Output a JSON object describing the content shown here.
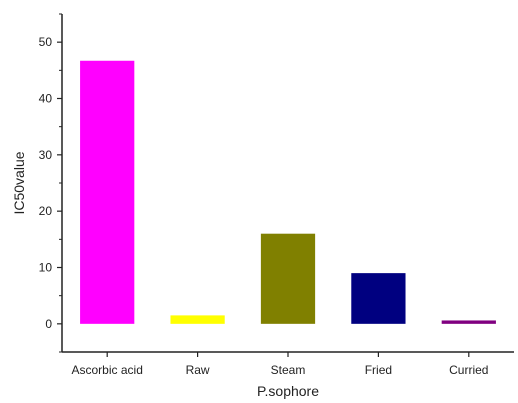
{
  "chart_data": {
    "type": "bar",
    "categories": [
      "Ascorbic acid",
      "Raw",
      "Steam",
      "Fried",
      "Curried"
    ],
    "values": [
      46.7,
      1.5,
      16.0,
      9.0,
      0.6
    ],
    "colors": [
      "#ff00ff",
      "#ffff00",
      "#808000",
      "#000080",
      "#800080"
    ],
    "xlabel": "P.sophore",
    "ylabel": "IC50value",
    "ylim": [
      -5,
      55
    ],
    "yticks": [
      0,
      10,
      20,
      30,
      40,
      50
    ],
    "grid": false
  }
}
